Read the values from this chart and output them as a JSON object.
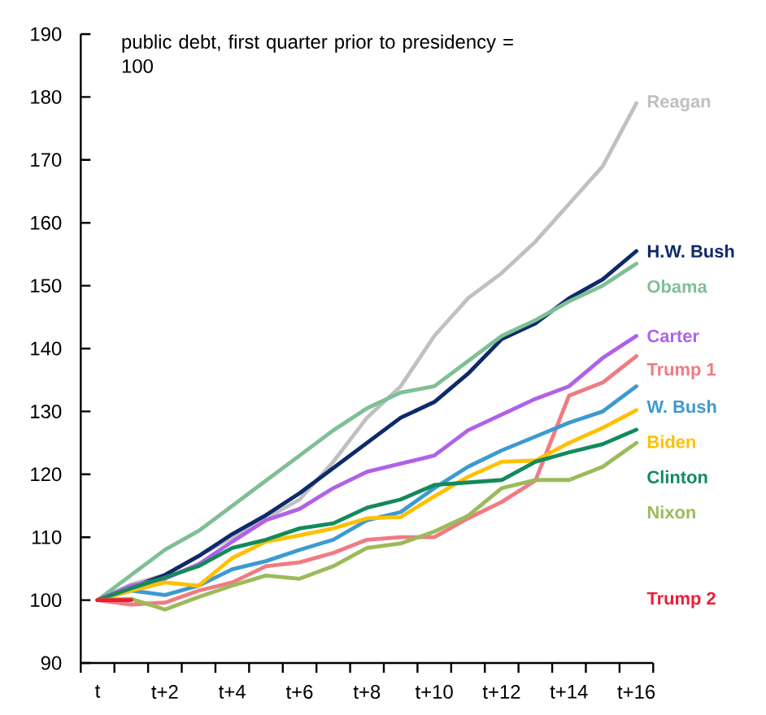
{
  "chart_data": {
    "type": "line",
    "subtitle": "public debt, first quarter prior to presidency = 100",
    "categories": [
      "t",
      null,
      "t+2",
      null,
      "t+4",
      null,
      "t+6",
      null,
      "t+8",
      null,
      "t+10",
      null,
      "t+12",
      null,
      "t+14",
      null,
      "t+16"
    ],
    "ylim": [
      90,
      190
    ],
    "yticks": [
      90,
      100,
      110,
      120,
      130,
      140,
      150,
      160,
      170,
      180,
      190
    ],
    "series": [
      {
        "name": "Reagan",
        "color": "#c0c0c0",
        "values": [
          100,
          102.5,
          104,
          107,
          110,
          113,
          116,
          122,
          129,
          134,
          142,
          148,
          152,
          157,
          163,
          169,
          179
        ]
      },
      {
        "name": "H.W. Bush",
        "color": "#0d2a6b",
        "values": [
          100,
          102,
          104,
          107,
          110.5,
          113.5,
          117,
          121,
          125,
          129,
          131.5,
          136,
          141.5,
          144,
          148,
          151,
          155.5
        ]
      },
      {
        "name": "Obama",
        "color": "#7fbf95",
        "values": [
          100,
          104,
          108,
          111,
          115,
          119,
          123,
          127,
          130.5,
          133,
          134,
          138,
          142,
          144.5,
          147.5,
          150,
          153.5
        ]
      },
      {
        "name": "Carter",
        "color": "#b061e8",
        "values": [
          100,
          102.3,
          103.4,
          105.7,
          109.3,
          112.7,
          114.5,
          117.8,
          120.4,
          121.7,
          123,
          127,
          129.5,
          132,
          134,
          138.5,
          142
        ]
      },
      {
        "name": "Trump 1",
        "color": "#f07b82",
        "values": [
          100,
          99.3,
          99.6,
          101.5,
          102.8,
          105.4,
          106,
          107.5,
          109.6,
          110,
          110,
          113,
          115.6,
          119,
          132.5,
          134.6,
          138.8
        ]
      },
      {
        "name": "W. Bush",
        "color": "#3c9ad0",
        "values": [
          100,
          101.5,
          100.8,
          102.3,
          104.9,
          106.2,
          108,
          109.6,
          112.7,
          114,
          117.8,
          121.2,
          123.8,
          126,
          128.2,
          130,
          134
        ]
      },
      {
        "name": "Biden",
        "color": "#ffc000",
        "values": [
          100,
          101.5,
          102.8,
          102.3,
          106.7,
          109.3,
          110.3,
          111.4,
          113,
          113.2,
          116.5,
          119.6,
          122,
          122.2,
          125,
          127.4,
          130.2
        ]
      },
      {
        "name": "Clinton",
        "color": "#138a5b",
        "values": [
          100,
          101.9,
          103.6,
          105.4,
          108.3,
          109.6,
          111.4,
          112.2,
          114.7,
          116,
          118.3,
          118.7,
          119.1,
          122,
          123.5,
          124.8,
          127.1
        ]
      },
      {
        "name": "Nixon",
        "color": "#9bbb59",
        "values": [
          100,
          100.2,
          98.5,
          100.5,
          102.3,
          103.9,
          103.4,
          105.4,
          108.3,
          109,
          110.9,
          113.4,
          117.8,
          119.1,
          119.1,
          121.2,
          125
        ]
      },
      {
        "name": "Trump 2",
        "color": "#ed1c35",
        "values": [
          100,
          100,
          null,
          null,
          null,
          null,
          null,
          null,
          null,
          null,
          null,
          null,
          null,
          null,
          null,
          null,
          null
        ]
      }
    ]
  }
}
